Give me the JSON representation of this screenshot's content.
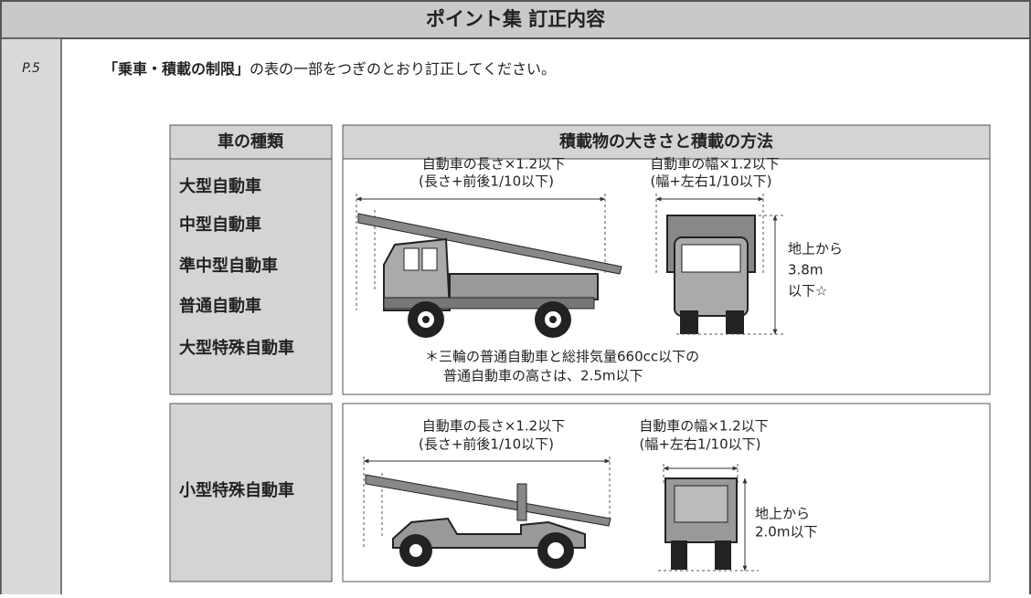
{
  "header": {
    "title": "ポイント集 訂正内容"
  },
  "page_label": "P.5",
  "instruction": {
    "emphasis": "「乗車・積載の制限」",
    "text": "の表の一部をつぎのとおり訂正してください。"
  },
  "table": {
    "headers": [
      "車の種類",
      "積載物の大きさと積載の方法"
    ],
    "rows": [
      {
        "vehicles": [
          "大型自動車",
          "中型自動車",
          "準中型自動車",
          "普通自動車",
          "大型特殊自動車"
        ],
        "length_label": [
          "自動車の長さ×1.2以下",
          "(長さ+前後1/10以下)"
        ],
        "width_label": [
          "自動車の幅×1.2以下",
          "(幅+左右1/10以下)"
        ],
        "height_label": [
          "地上から",
          "3.8m",
          "以下☆"
        ],
        "note": [
          "＊三輪の普通自動車と総排気量660cc以下の",
          "普通自動車の高さは、2.5m以下"
        ]
      },
      {
        "vehicles": [
          "小型特殊自動車"
        ],
        "length_label": [
          "自動車の長さ×1.2以下",
          "(長さ+前後1/10以下)"
        ],
        "width_label": [
          "自動車の幅×1.2以下",
          "(幅+左右1/10以下)"
        ],
        "height_label": [
          "地上から",
          "2.0m以下"
        ]
      }
    ]
  }
}
